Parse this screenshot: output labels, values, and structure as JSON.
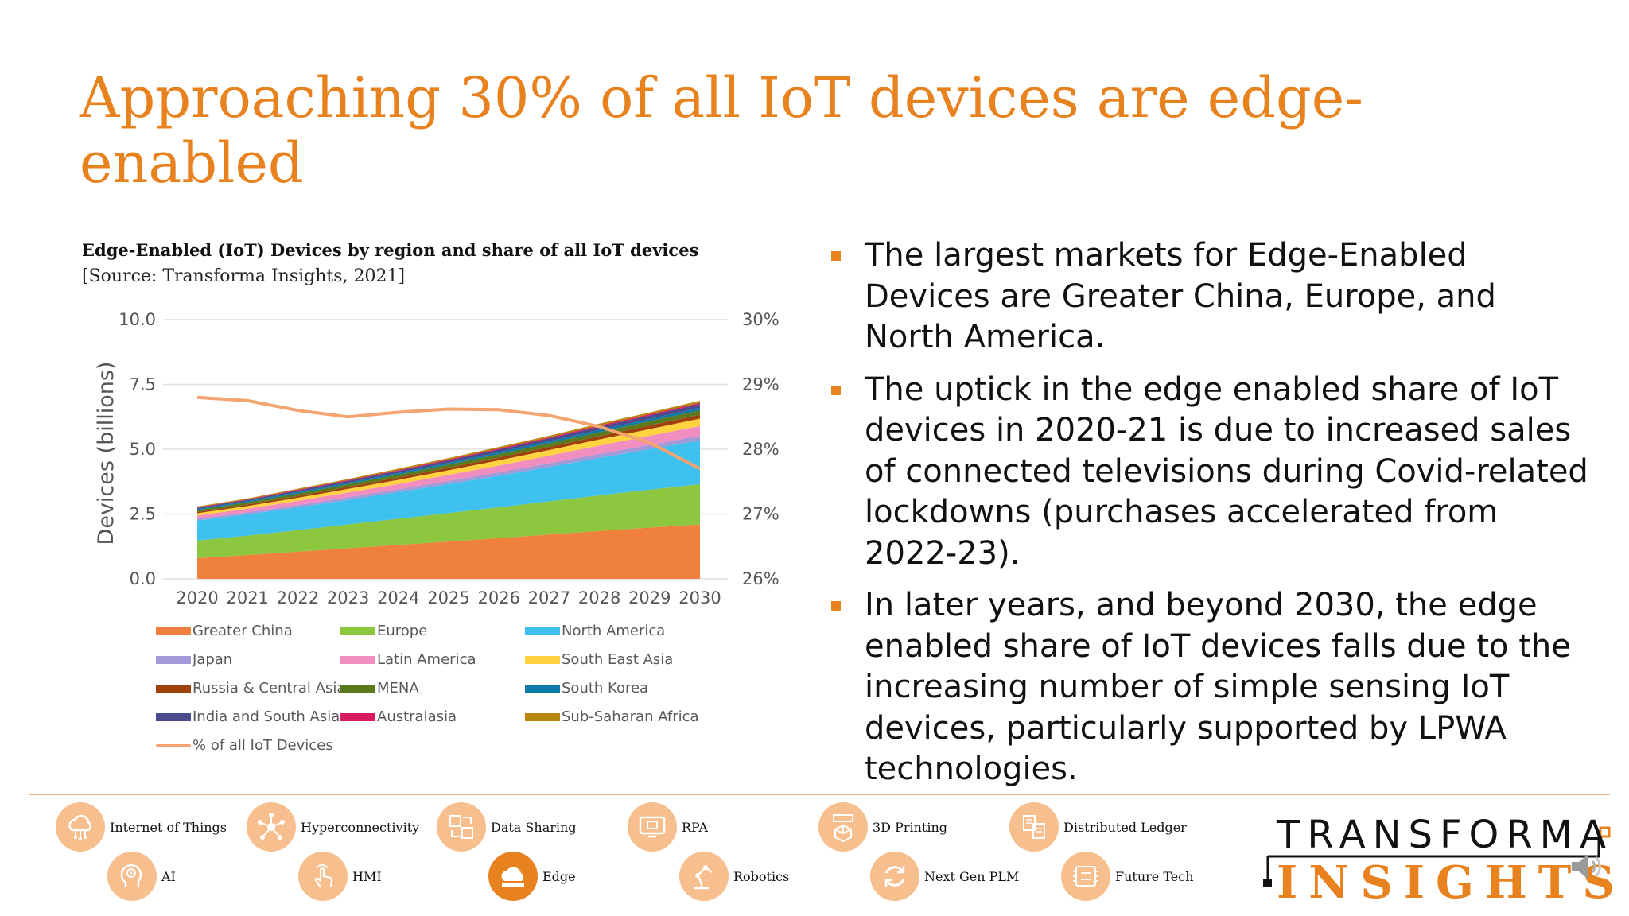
{
  "slide": {
    "title": "Approaching 30% of all IoT devices are edge-enabled",
    "chart_heading": "Edge-Enabled (IoT) Devices by region and share of all IoT devices",
    "chart_source": "[Source: Transforma Insights, 2021]"
  },
  "bullets": [
    "The largest markets for Edge-Enabled Devices are Greater China, Europe, and North America.",
    "The uptick in the edge enabled share of IoT devices in 2020-21 is due to increased sales of connected televisions during Covid-related lockdowns (purchases accelerated from 2022-23).",
    "In later years, and beyond 2030, the edge enabled share of IoT devices falls due to the increasing number of simple sensing IoT devices, particularly supported by LPWA technologies."
  ],
  "chart_data": {
    "type": "area",
    "stacked": true,
    "title": "Edge-Enabled (IoT) Devices by region and share of all IoT devices",
    "ylabel": "Devices (billions)",
    "y_ticks": [
      "0.0",
      "2.5",
      "5.0",
      "7.5",
      "10.0"
    ],
    "ylim": [
      0,
      10
    ],
    "y2_ticks": [
      "26%",
      "27%",
      "28%",
      "29%",
      "30%"
    ],
    "y2lim": [
      26,
      30
    ],
    "x": [
      "2020",
      "2021",
      "2022",
      "2023",
      "2024",
      "2025",
      "2026",
      "2027",
      "2028",
      "2029",
      "2030"
    ],
    "series": [
      {
        "name": "Greater China",
        "color": "#F0813C",
        "values": [
          0.8,
          0.92,
          1.05,
          1.18,
          1.31,
          1.44,
          1.57,
          1.71,
          1.85,
          1.98,
          2.1
        ]
      },
      {
        "name": "Europe",
        "color": "#8DC63F",
        "values": [
          0.68,
          0.75,
          0.83,
          0.92,
          1.01,
          1.1,
          1.19,
          1.28,
          1.37,
          1.46,
          1.55
        ]
      },
      {
        "name": "North America",
        "color": "#3FC1F0",
        "values": [
          0.77,
          0.82,
          0.88,
          0.95,
          1.03,
          1.12,
          1.22,
          1.33,
          1.45,
          1.57,
          1.7
        ]
      },
      {
        "name": "Japan",
        "color": "#A59AD9",
        "values": [
          0.07,
          0.08,
          0.09,
          0.1,
          0.11,
          0.12,
          0.13,
          0.14,
          0.15,
          0.16,
          0.17
        ]
      },
      {
        "name": "Latin America",
        "color": "#F28DC0",
        "values": [
          0.12,
          0.14,
          0.16,
          0.18,
          0.2,
          0.23,
          0.26,
          0.29,
          0.32,
          0.35,
          0.38
        ]
      },
      {
        "name": "South East Asia",
        "color": "#FFD23F",
        "values": [
          0.09,
          0.1,
          0.12,
          0.14,
          0.16,
          0.18,
          0.2,
          0.22,
          0.24,
          0.26,
          0.28
        ]
      },
      {
        "name": "Russia & Central Asia",
        "color": "#A0410D",
        "values": [
          0.05,
          0.06,
          0.07,
          0.08,
          0.09,
          0.1,
          0.11,
          0.12,
          0.13,
          0.14,
          0.15
        ]
      },
      {
        "name": "MENA",
        "color": "#5A7A1E",
        "values": [
          0.07,
          0.08,
          0.09,
          0.1,
          0.11,
          0.12,
          0.13,
          0.14,
          0.15,
          0.16,
          0.17
        ]
      },
      {
        "name": "South Korea",
        "color": "#0E7AA8",
        "values": [
          0.05,
          0.05,
          0.06,
          0.06,
          0.07,
          0.07,
          0.08,
          0.08,
          0.09,
          0.09,
          0.1
        ]
      },
      {
        "name": "India and South Asia",
        "color": "#4A4A8C",
        "values": [
          0.04,
          0.05,
          0.06,
          0.07,
          0.08,
          0.09,
          0.1,
          0.11,
          0.12,
          0.13,
          0.14
        ]
      },
      {
        "name": "Australasia",
        "color": "#D81B60",
        "values": [
          0.02,
          0.02,
          0.03,
          0.03,
          0.03,
          0.04,
          0.04,
          0.04,
          0.05,
          0.05,
          0.05
        ]
      },
      {
        "name": "Sub-Saharan Africa",
        "color": "#B8860B",
        "values": [
          0.03,
          0.03,
          0.04,
          0.04,
          0.05,
          0.05,
          0.06,
          0.06,
          0.07,
          0.07,
          0.08
        ]
      }
    ],
    "line_series": {
      "name": "% of all IoT Devices",
      "color": "#F4A470",
      "axis": "right",
      "values": [
        28.8,
        28.75,
        28.6,
        28.5,
        28.57,
        28.62,
        28.61,
        28.52,
        28.35,
        28.1,
        27.7
      ]
    },
    "legend_position": "bottom"
  },
  "footer": {
    "topics": [
      {
        "label": "Internet of Things",
        "icon": "cloud-network-icon"
      },
      {
        "label": "Hyperconnectivity",
        "icon": "hub-network-icon"
      },
      {
        "label": "Data Sharing",
        "icon": "data-sharing-icon"
      },
      {
        "label": "RPA",
        "icon": "monitor-robot-icon"
      },
      {
        "label": "3D Printing",
        "icon": "cube-printer-icon"
      },
      {
        "label": "Distributed Ledger",
        "icon": "ledger-icon"
      },
      {
        "label": "AI",
        "icon": "brain-head-icon"
      },
      {
        "label": "HMI",
        "icon": "hand-touch-icon"
      },
      {
        "label": "Edge",
        "icon": "edge-cloud-icon"
      },
      {
        "label": "Robotics",
        "icon": "robot-arm-icon"
      },
      {
        "label": "Next Gen PLM",
        "icon": "cycle-arrows-icon"
      },
      {
        "label": "Future Tech",
        "icon": "circuit-board-icon"
      }
    ],
    "active_topic": "Edge",
    "logo_top": "TRANSFORMA",
    "logo_bottom": "INSIGHTS"
  },
  "colors": {
    "accent": "#E8821E",
    "icon_bg": "#F6BF8D",
    "text": "#111111",
    "axis_text": "#555555"
  }
}
